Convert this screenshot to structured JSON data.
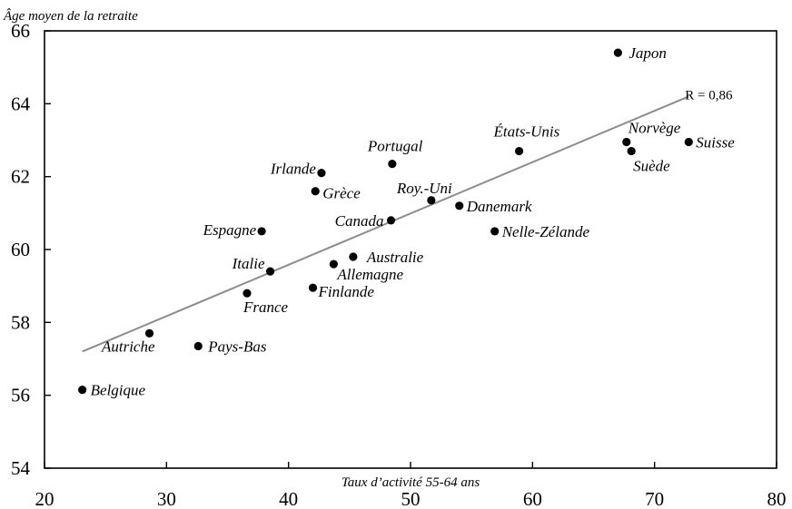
{
  "chart_data": {
    "type": "scatter",
    "title": "",
    "xlabel": "Taux d’activité 55-64 ans",
    "ylabel": "Âge moyen de la retraite",
    "xlim": [
      20,
      80
    ],
    "ylim": [
      54,
      66
    ],
    "x_ticks": [
      "20",
      "30",
      "40",
      "50",
      "60",
      "70",
      "80"
    ],
    "y_ticks": [
      "54",
      "56",
      "58",
      "60",
      "62",
      "64",
      "66"
    ],
    "grid": false,
    "points": [
      {
        "label": "Belgique",
        "x": 23.1,
        "y": 56.15
      },
      {
        "label": "Autriche",
        "x": 28.6,
        "y": 57.7
      },
      {
        "label": "Pays-Bas",
        "x": 32.6,
        "y": 57.35
      },
      {
        "label": "France",
        "x": 36.6,
        "y": 58.8
      },
      {
        "label": "Italie",
        "x": 38.5,
        "y": 59.4
      },
      {
        "label": "Espagne",
        "x": 37.8,
        "y": 60.5
      },
      {
        "label": "Finlande",
        "x": 42.0,
        "y": 58.95
      },
      {
        "label": "Allemagne",
        "x": 43.7,
        "y": 59.6
      },
      {
        "label": "Australie",
        "x": 45.3,
        "y": 59.8
      },
      {
        "label": "Grèce",
        "x": 42.2,
        "y": 61.6
      },
      {
        "label": "Irlande",
        "x": 42.7,
        "y": 62.1
      },
      {
        "label": "Canada",
        "x": 48.4,
        "y": 60.8
      },
      {
        "label": "Portugal",
        "x": 48.5,
        "y": 62.35
      },
      {
        "label": "Roy.-Uni",
        "x": 51.7,
        "y": 61.35
      },
      {
        "label": "Danemark",
        "x": 54.0,
        "y": 61.2
      },
      {
        "label": "Nelle-Zélande",
        "x": 56.9,
        "y": 60.5
      },
      {
        "label": "États-Unis",
        "x": 58.9,
        "y": 62.7
      },
      {
        "label": "Japon",
        "x": 67.0,
        "y": 65.4
      },
      {
        "label": "Norvège",
        "x": 67.7,
        "y": 62.95
      },
      {
        "label": "Suède",
        "x": 68.1,
        "y": 62.7
      },
      {
        "label": "Suisse",
        "x": 72.8,
        "y": 62.95
      }
    ],
    "trendline": {
      "x": [
        23.1,
        72.8
      ],
      "y": [
        57.2,
        64.2
      ],
      "label": "R = 0,86"
    },
    "colors": {
      "points": "#000000",
      "trendline": "#8c8c8c",
      "axes": "#000000"
    }
  }
}
